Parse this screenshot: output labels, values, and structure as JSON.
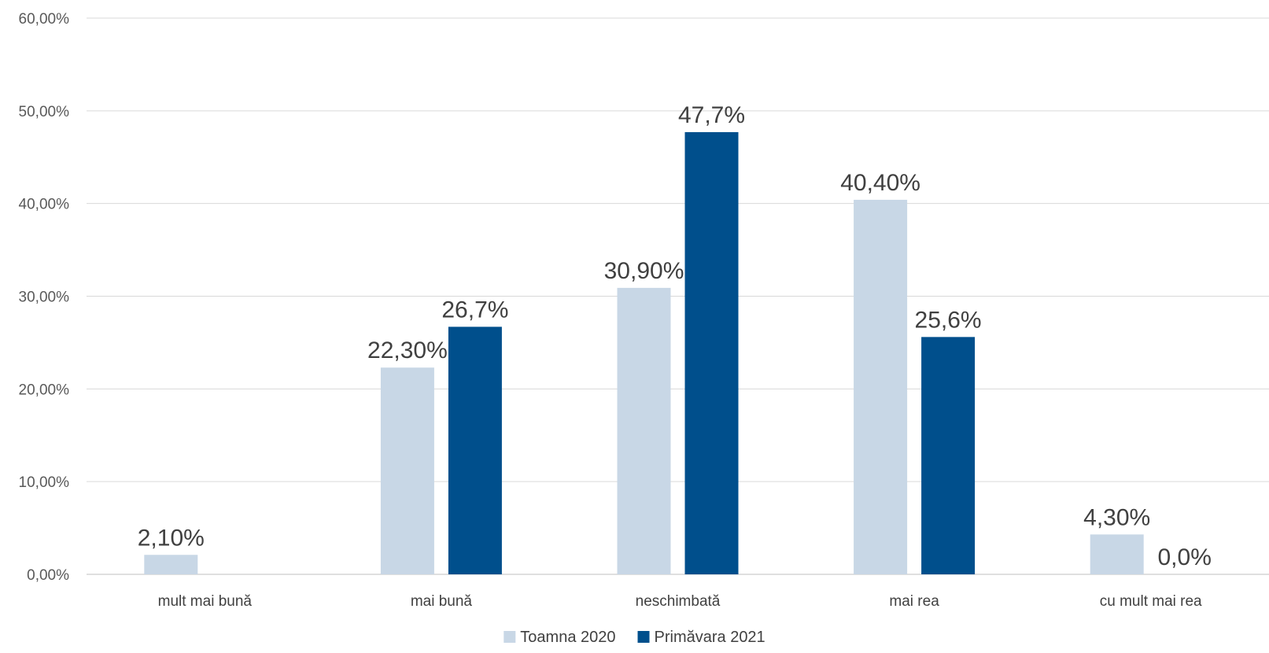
{
  "chart_data": {
    "type": "bar",
    "title": "",
    "xlabel": "",
    "ylabel": "",
    "categories": [
      "mult mai bună",
      "mai bună",
      "neschimbată",
      "mai rea",
      "cu mult mai rea"
    ],
    "ylim": [
      0,
      60
    ],
    "yticks": [
      0,
      10,
      20,
      30,
      40,
      50,
      60
    ],
    "ytick_labels": [
      "0,00%",
      "10,00%",
      "20,00%",
      "30,00%",
      "40,00%",
      "50,00%",
      "60,00%"
    ],
    "grid": true,
    "legend_position": "bottom",
    "series": [
      {
        "name": "Toamna 2020",
        "color": "#c8d7e6",
        "values": [
          2.1,
          22.3,
          30.9,
          40.4,
          4.3
        ],
        "labels": [
          "2,10%",
          "22,30%",
          "30,90%",
          "40,40%",
          "4,30%"
        ]
      },
      {
        "name": "Primăvara 2021",
        "color": "#004f8c",
        "values": [
          0,
          26.7,
          47.7,
          25.6,
          0
        ],
        "labels": [
          "",
          "26,7%",
          "47,7%",
          "25,6%",
          "0,0%"
        ]
      }
    ]
  }
}
